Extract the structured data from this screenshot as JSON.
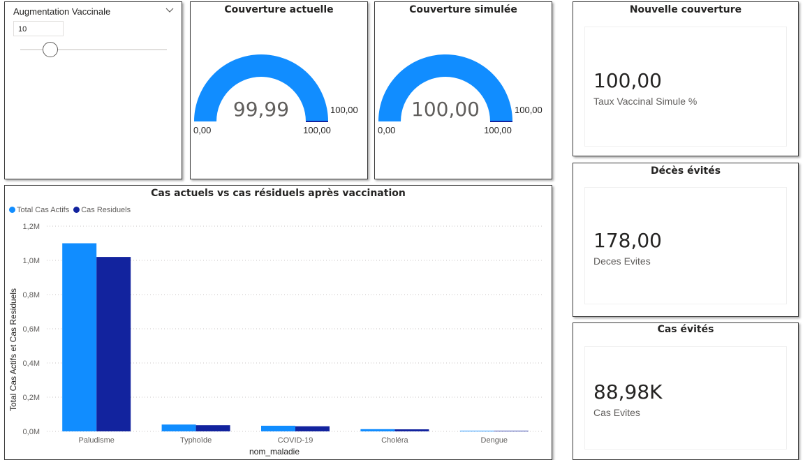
{
  "slicer": {
    "title": "Augmentation Vaccinale",
    "value": "10",
    "level": 0.1
  },
  "gauge_current": {
    "title": "Couverture actuelle",
    "value": "99,99",
    "min": "0,00",
    "max": "100,00",
    "target": "100,00",
    "fraction": 0.9999
  },
  "gauge_simulated": {
    "title": "Couverture simulée",
    "value": "100,00",
    "min": "0,00",
    "max": "100,00",
    "target": "100,00",
    "fraction": 1.0
  },
  "kpi_coverage": {
    "title": "Nouvelle couverture",
    "value": "100,00",
    "label": "Taux Vaccinal Simule %"
  },
  "kpi_deaths": {
    "title": "Décès évités",
    "value": "178,00",
    "label": "Deces Evites"
  },
  "kpi_cases": {
    "title": "Cas évités",
    "value": "88,98K",
    "label": "Cas Evites"
  },
  "colors": {
    "series1": "#118DFF",
    "series2": "#12239E",
    "gauge_fill": "#118DFF",
    "gauge_target": "#12239E"
  },
  "chart_data": {
    "type": "bar",
    "title": "Cas actuels vs cas résiduels après vaccination",
    "xlabel": "nom_maladie",
    "ylabel": "Total Cas Actifs et Cas Residuels",
    "categories": [
      "Paludisme",
      "Typhoïde",
      "COVID-19",
      "Choléra",
      "Dengue"
    ],
    "series": [
      {
        "name": "Total Cas Actifs",
        "values": [
          1100000,
          40000,
          33000,
          13000,
          4000
        ]
      },
      {
        "name": "Cas Residuels",
        "values": [
          1020000,
          36000,
          30000,
          12000,
          3600
        ]
      }
    ],
    "ylim": [
      0,
      1200000
    ],
    "yticks": [
      "0,0M",
      "0,2M",
      "0,4M",
      "0,6M",
      "0,8M",
      "1,0M",
      "1,2M"
    ],
    "legend": "top-left",
    "grid": true
  }
}
